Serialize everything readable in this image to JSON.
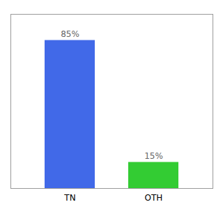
{
  "chart_data": {
    "type": "bar",
    "categories": [
      "TN",
      "OTH"
    ],
    "values": [
      85,
      15
    ],
    "colors": [
      "#4169e8",
      "#33cc33"
    ],
    "value_labels": [
      "85%",
      "15%"
    ],
    "data_labels": true,
    "ylim": [
      0,
      100
    ],
    "grid": false,
    "tick_labels": "x"
  }
}
